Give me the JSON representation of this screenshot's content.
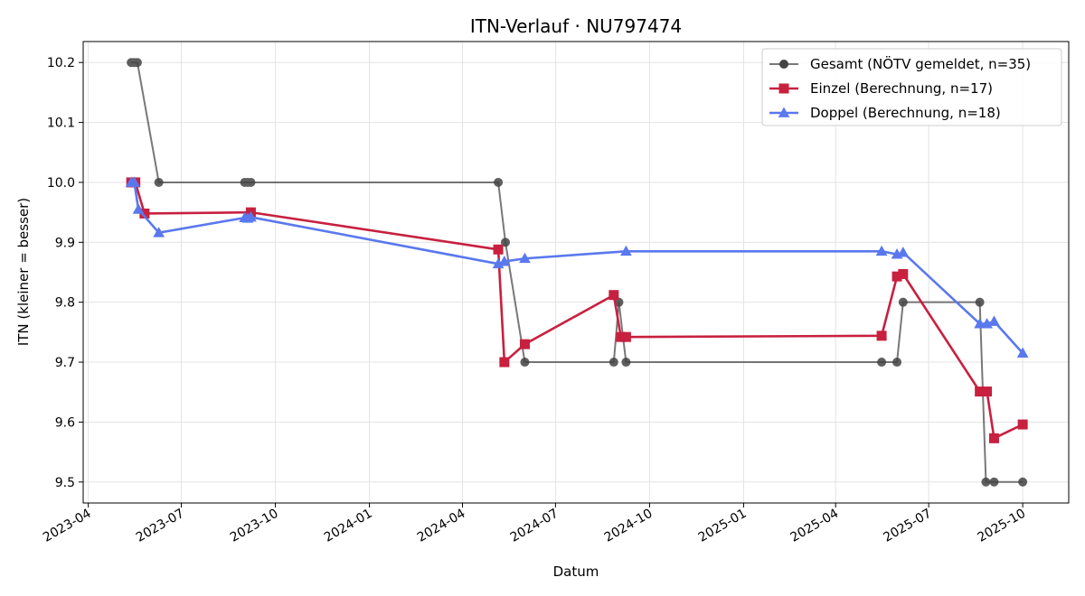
{
  "chart_data": {
    "type": "line",
    "title": "ITN-Verlauf · NU797474",
    "xlabel": "Datum",
    "ylabel": "ITN  (kleiner = besser)",
    "grid": true,
    "legend_placement": "top-right",
    "xlim": [
      "2023-03-27",
      "2025-11-15"
    ],
    "ylim": [
      9.465,
      10.235
    ],
    "y_ticks": [
      9.5,
      9.6,
      9.7,
      9.8,
      9.9,
      10.0,
      10.1,
      10.2
    ],
    "y_tick_labels": [
      "9.5",
      "9.6",
      "9.7",
      "9.8",
      "9.9",
      "10.0",
      "10.1",
      "10.2"
    ],
    "x_ticks": [
      "2023-04-01",
      "2023-07-01",
      "2023-10-01",
      "2024-01-01",
      "2024-04-01",
      "2024-07-01",
      "2024-10-01",
      "2025-01-01",
      "2025-04-01",
      "2025-07-01",
      "2025-10-01"
    ],
    "x_tick_labels": [
      "2023-04",
      "2023-07",
      "2023-10",
      "2024-01",
      "2024-04",
      "2024-07",
      "2024-10",
      "2025-01",
      "2025-04",
      "2025-07",
      "2025-10"
    ],
    "series": [
      {
        "name": "Gesamt (NÖTV gemeldet, n=35)",
        "color": "#444444",
        "marker": "circle",
        "points": [
          [
            "2023-05-13",
            10.2
          ],
          [
            "2023-05-16",
            10.2
          ],
          [
            "2023-05-19",
            10.2
          ],
          [
            "2023-06-09",
            10.0
          ],
          [
            "2023-09-01",
            10.0
          ],
          [
            "2023-09-04",
            10.0
          ],
          [
            "2023-09-07",
            10.0
          ],
          [
            "2024-05-06",
            10.0
          ],
          [
            "2024-05-13",
            9.9
          ],
          [
            "2024-06-01",
            9.7
          ],
          [
            "2024-08-27",
            9.7
          ],
          [
            "2024-09-01",
            9.8
          ],
          [
            "2024-09-08",
            9.7
          ],
          [
            "2025-05-16",
            9.7
          ],
          [
            "2025-05-31",
            9.7
          ],
          [
            "2025-06-06",
            9.8
          ],
          [
            "2025-08-20",
            9.8
          ],
          [
            "2025-08-26",
            9.5
          ],
          [
            "2025-09-03",
            9.5
          ],
          [
            "2025-10-01",
            9.5
          ]
        ]
      },
      {
        "name": "Einzel (Berechnung, n=17)",
        "color": "#c8203f",
        "marker": "square",
        "points": [
          [
            "2023-05-13",
            10.0
          ],
          [
            "2023-05-17",
            10.0
          ],
          [
            "2023-05-26",
            9.948
          ],
          [
            "2023-09-07",
            9.95
          ],
          [
            "2024-05-06",
            9.888
          ],
          [
            "2024-05-12",
            9.7
          ],
          [
            "2024-06-01",
            9.73
          ],
          [
            "2024-08-27",
            9.812
          ],
          [
            "2024-09-03",
            9.742
          ],
          [
            "2024-09-08",
            9.742
          ],
          [
            "2025-05-16",
            9.744
          ],
          [
            "2025-05-31",
            9.843
          ],
          [
            "2025-06-06",
            9.847
          ],
          [
            "2025-08-20",
            9.651
          ],
          [
            "2025-08-27",
            9.651
          ],
          [
            "2025-09-03",
            9.573
          ],
          [
            "2025-10-01",
            9.596
          ]
        ]
      },
      {
        "name": "Doppel (Berechnung, n=18)",
        "color": "#5a78ee",
        "marker": "triangle",
        "points": [
          [
            "2023-05-13",
            10.0
          ],
          [
            "2023-05-16",
            10.0
          ],
          [
            "2023-05-20",
            9.955
          ],
          [
            "2023-06-09",
            9.916
          ],
          [
            "2023-09-01",
            9.941
          ],
          [
            "2023-09-04",
            9.94
          ],
          [
            "2023-09-07",
            9.942
          ],
          [
            "2024-05-06",
            9.864
          ],
          [
            "2024-05-12",
            9.868
          ],
          [
            "2024-06-01",
            9.873
          ],
          [
            "2024-09-08",
            9.885
          ],
          [
            "2025-05-16",
            9.885
          ],
          [
            "2025-05-31",
            9.88
          ],
          [
            "2025-06-06",
            9.883
          ],
          [
            "2025-08-20",
            9.764
          ],
          [
            "2025-08-27",
            9.764
          ],
          [
            "2025-09-03",
            9.768
          ],
          [
            "2025-10-01",
            9.715
          ]
        ]
      }
    ]
  }
}
